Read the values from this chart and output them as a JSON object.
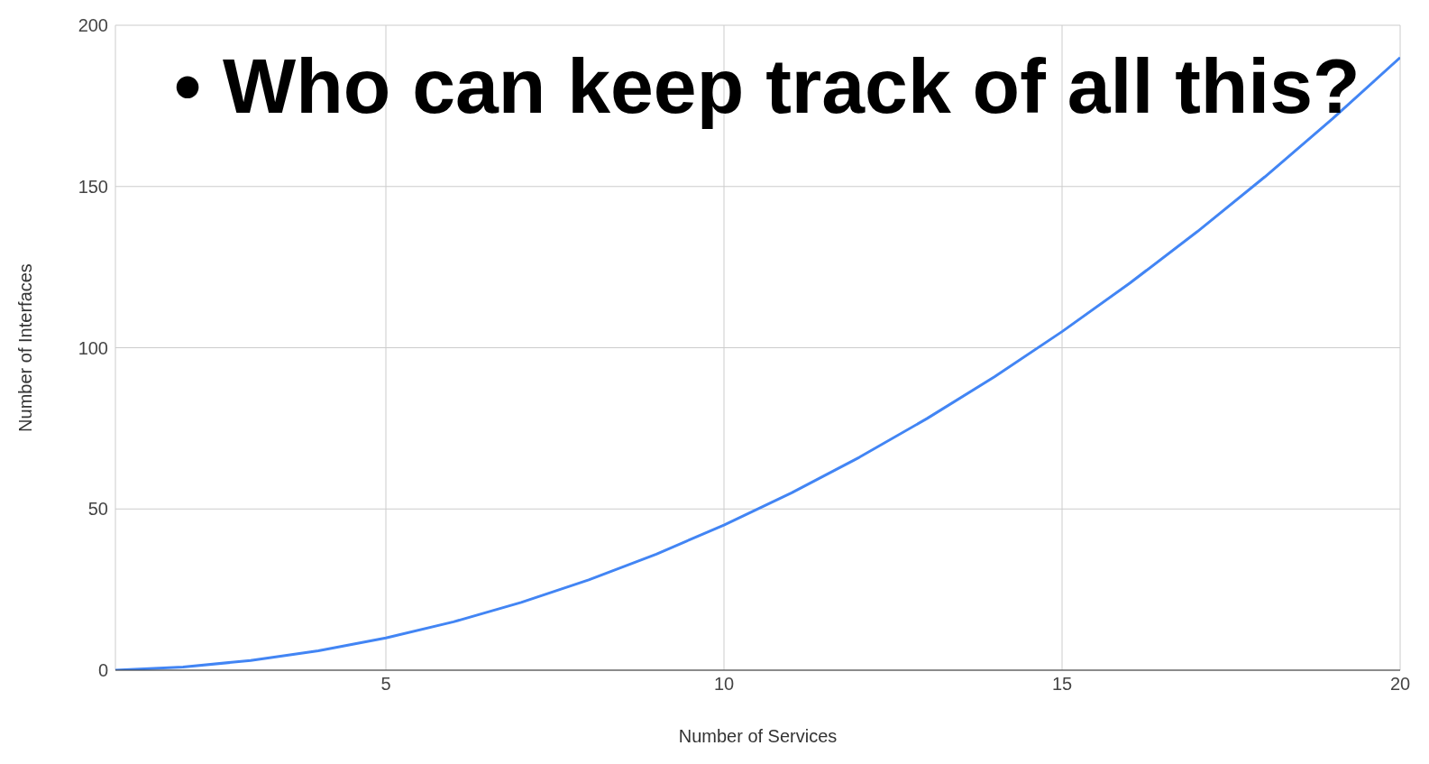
{
  "chart_data": {
    "type": "line",
    "xlabel": "Number of Services",
    "ylabel": "Number of Interfaces",
    "annotations": [
      "• Who can keep track of all this?"
    ],
    "x": [
      1,
      2,
      3,
      4,
      5,
      6,
      7,
      8,
      9,
      10,
      11,
      12,
      13,
      14,
      15,
      16,
      17,
      18,
      19,
      20
    ],
    "series": [
      {
        "color": "#4285f4",
        "values": [
          0,
          1,
          3,
          6,
          10,
          15,
          21,
          28,
          36,
          45,
          55,
          66,
          78,
          91,
          105,
          120,
          136,
          153,
          171,
          190
        ]
      }
    ],
    "xlim": [
      1,
      20
    ],
    "xticks": [
      5,
      10,
      15,
      20
    ],
    "ylim": [
      0,
      200
    ],
    "yticks": [
      0,
      50,
      100,
      150,
      200
    ],
    "grid": true
  }
}
